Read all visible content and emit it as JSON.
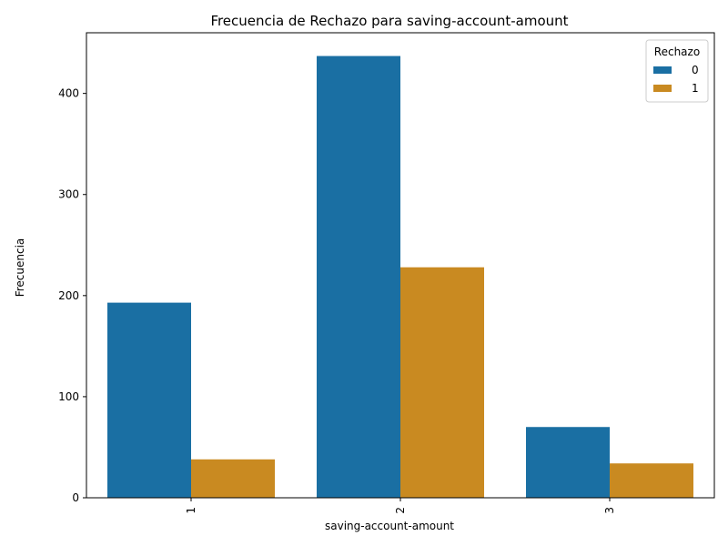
{
  "chart_data": {
    "type": "bar",
    "title": "Frecuencia de Rechazo para saving-account-amount",
    "xlabel": "saving-account-amount",
    "ylabel": "Frecuencia",
    "categories": [
      "1",
      "2",
      "3"
    ],
    "ylim": [
      0,
      460
    ],
    "yticks": [
      0,
      100,
      200,
      300,
      400
    ],
    "series": [
      {
        "name": "0",
        "color": "#1a6fa3",
        "values": [
          193,
          437,
          70
        ]
      },
      {
        "name": "1",
        "color": "#c98a21",
        "values": [
          38,
          228,
          34
        ]
      }
    ],
    "legend": {
      "title": "Rechazo",
      "position": "top-right"
    },
    "grid": false
  }
}
